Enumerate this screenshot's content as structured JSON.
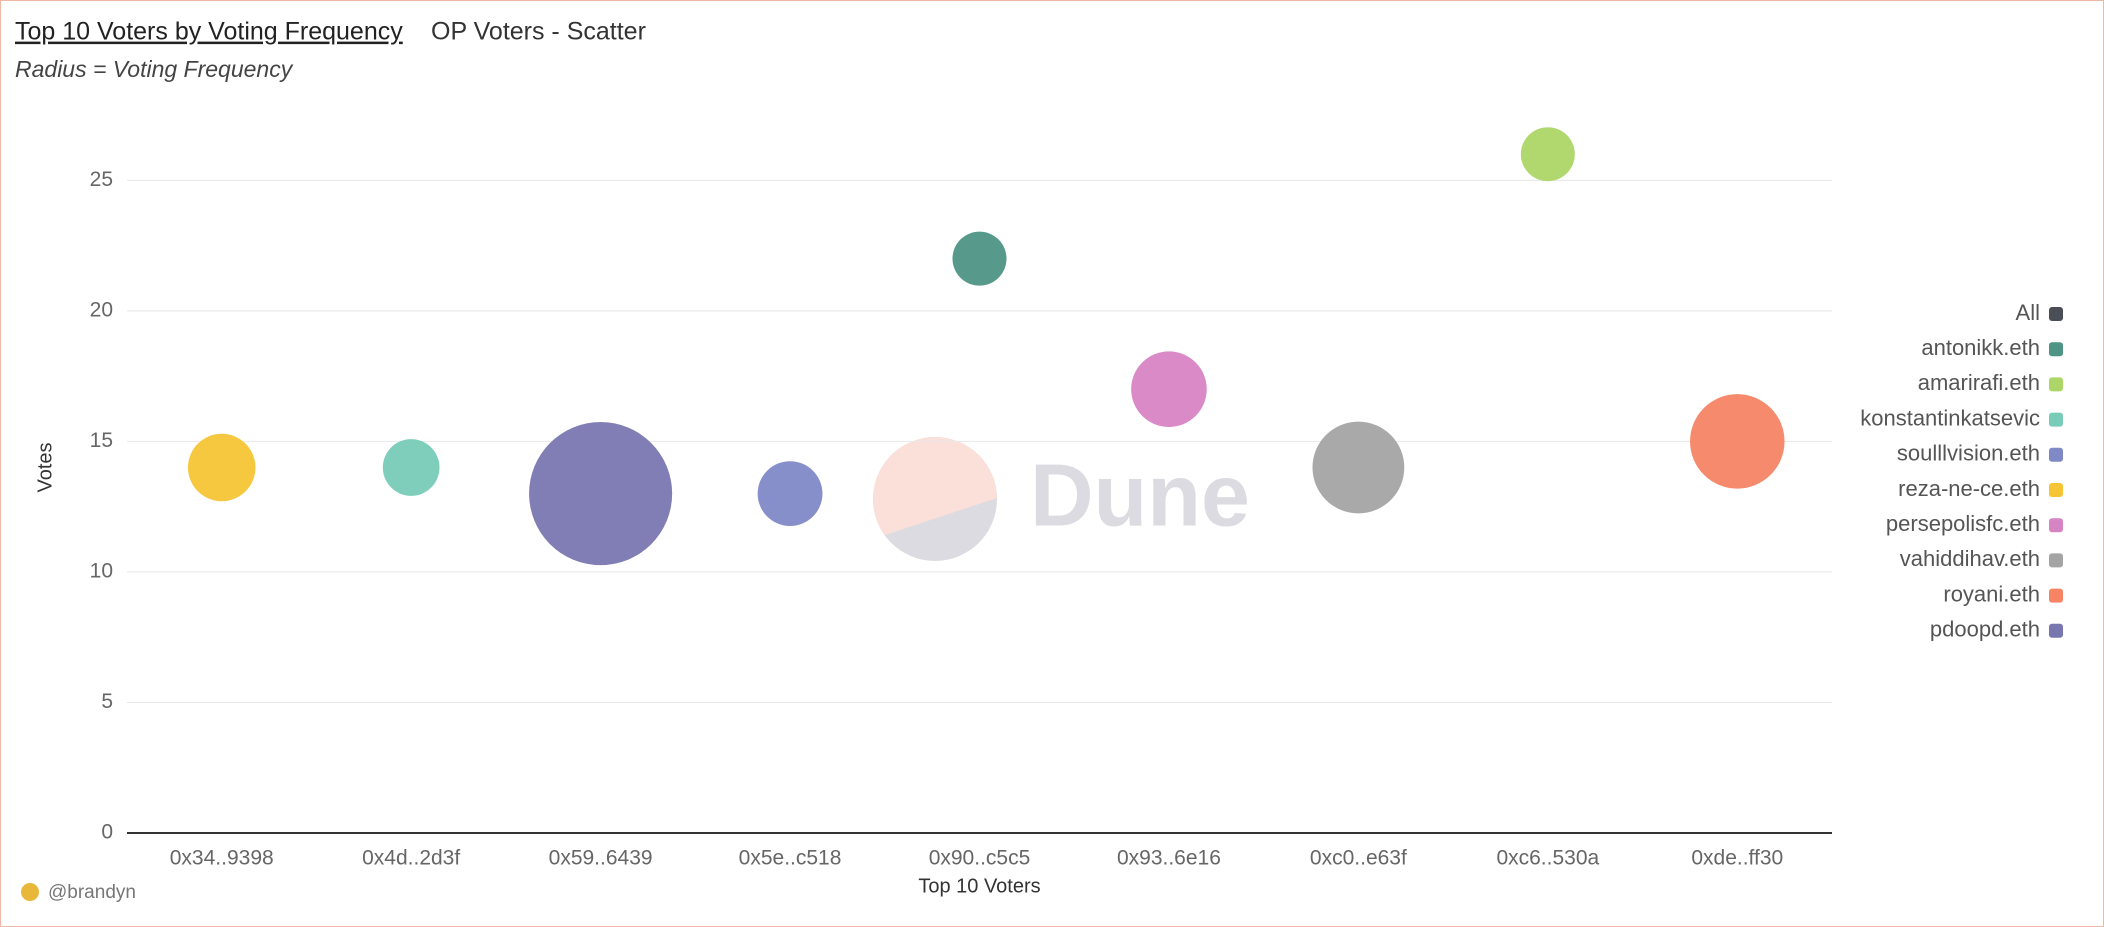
{
  "header": {
    "title": "Top 10 Voters by Voting Frequency",
    "query": "OP Voters - Scatter",
    "subtitle": "Radius = Voting Frequency",
    "author": "@brandyn",
    "watermark": "Dune"
  },
  "chart_data": {
    "type": "bubble",
    "x_label": "Top 10 Voters",
    "y_label": "Votes",
    "categories": [
      "0x34..9398",
      "0x4d..2d3f",
      "0x59..6439",
      "0x5e..c518",
      "0x90..c5c5",
      "0x93..6e16",
      "0xc0..e63f",
      "0xc6..530a",
      "0xde..ff30"
    ],
    "ylim": [
      0,
      28
    ],
    "yticks": [
      0,
      5,
      10,
      15,
      20,
      25
    ],
    "grid": true,
    "legend": {
      "all_label": "All",
      "all_color": "#4a4f57",
      "position": "right"
    },
    "series": [
      {
        "name": "antonikk.eth",
        "color": "#4e9484",
        "x": [
          "0x90..c5c5"
        ],
        "values": [
          22
        ],
        "sizes": [
          20
        ]
      },
      {
        "name": "amarirafi.eth",
        "color": "#acd667",
        "x": [
          "0xc6..530a"
        ],
        "values": [
          26
        ],
        "sizes": [
          20
        ]
      },
      {
        "name": "konstantinkatsevic",
        "color": "#77cbb7",
        "x": [
          "0x4d..2d3f"
        ],
        "values": [
          14
        ],
        "sizes": [
          21
        ]
      },
      {
        "name": "soulllvision.eth",
        "color": "#7f89c6",
        "x": [
          "0x5e..c518"
        ],
        "values": [
          13
        ],
        "sizes": [
          24
        ]
      },
      {
        "name": "reza-ne-ce.eth",
        "color": "#f5c535",
        "x": [
          "0x34..9398"
        ],
        "values": [
          14
        ],
        "sizes": [
          25
        ]
      },
      {
        "name": "persepolisfc.eth",
        "color": "#d784c4",
        "x": [
          "0x93..6e16"
        ],
        "values": [
          17
        ],
        "sizes": [
          28
        ]
      },
      {
        "name": "vahiddihav.eth",
        "color": "#a4a4a4",
        "x": [
          "0xc0..e63f"
        ],
        "values": [
          14
        ],
        "sizes": [
          34
        ]
      },
      {
        "name": "royani.eth",
        "color": "#f68465",
        "x": [
          "0xde..ff30"
        ],
        "values": [
          15
        ],
        "sizes": [
          35
        ]
      },
      {
        "name": "pdoopd.eth",
        "color": "#7977b0",
        "x": [
          "0x59..6439"
        ],
        "values": [
          13
        ],
        "sizes": [
          53
        ]
      }
    ]
  }
}
